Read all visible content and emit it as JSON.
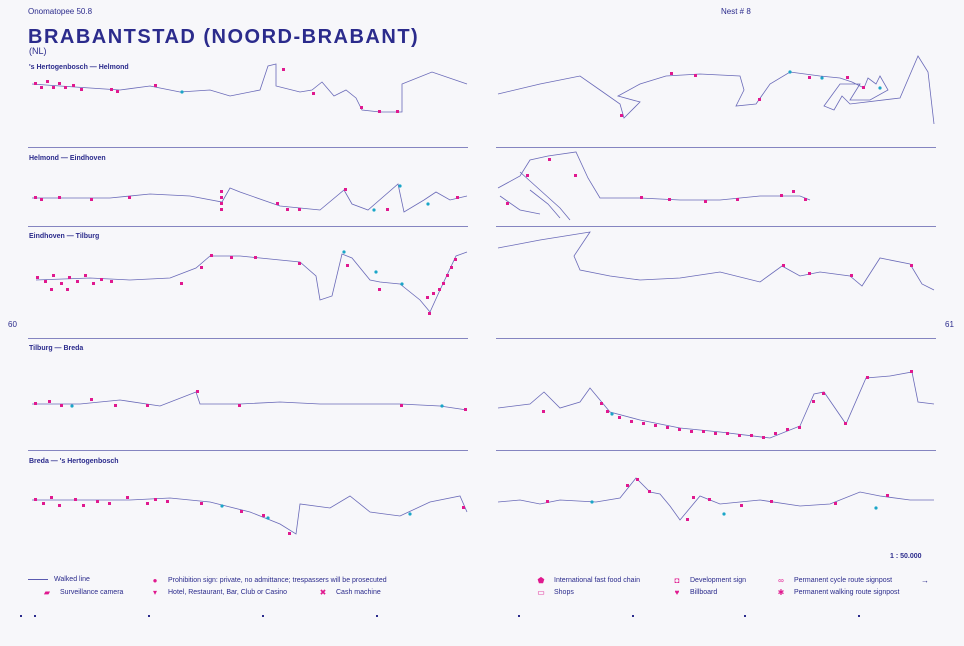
{
  "header": {
    "left": "Onomatopee 50.8",
    "right": "Nest # 8"
  },
  "title": "BRABANTSTAD (NOORD-BRABANT)",
  "subtitle": "(NL)",
  "sections": [
    {
      "label": "'s Hertogenbosch — Helmond"
    },
    {
      "label": "Helmond — Eindhoven"
    },
    {
      "label": "Eindhoven — Tilburg"
    },
    {
      "label": "Tilburg — Breda"
    },
    {
      "label": "Breda — 's Hertogenbosch"
    }
  ],
  "page_numbers": {
    "left": "60",
    "right": "61"
  },
  "scale": "1 : 50.000",
  "legend": [
    {
      "icon": "line-icon",
      "label": "Walked line"
    },
    {
      "icon": "surveillance-camera-icon",
      "label": "Surveillance camera"
    },
    {
      "icon": "prohibition-sign-icon",
      "label": "Prohibition sign: private, no admittance; trespassers will be prosecuted"
    },
    {
      "icon": "hotel-icon",
      "label": "Hotel, Restaurant, Bar, Club or Casino"
    },
    {
      "icon": "cash-machine-icon",
      "label": "Cash machine"
    },
    {
      "icon": "fast-food-icon",
      "label": "International fast food chain"
    },
    {
      "icon": "shops-icon",
      "label": "Shops"
    },
    {
      "icon": "development-sign-icon",
      "label": "Development sign"
    },
    {
      "icon": "billboard-icon",
      "label": "Billboard"
    },
    {
      "icon": "cycle-route-icon",
      "label": "Permanent cycle route signpost"
    },
    {
      "icon": "walking-route-icon",
      "label": "Permanent walking route signpost"
    },
    {
      "icon": "arrow-right-icon",
      "label": ""
    }
  ],
  "colors": {
    "ink": "#2b2b8c",
    "line": "#6a6ab8",
    "marker": "#e0198f",
    "cyan": "#1aa6c8"
  }
}
